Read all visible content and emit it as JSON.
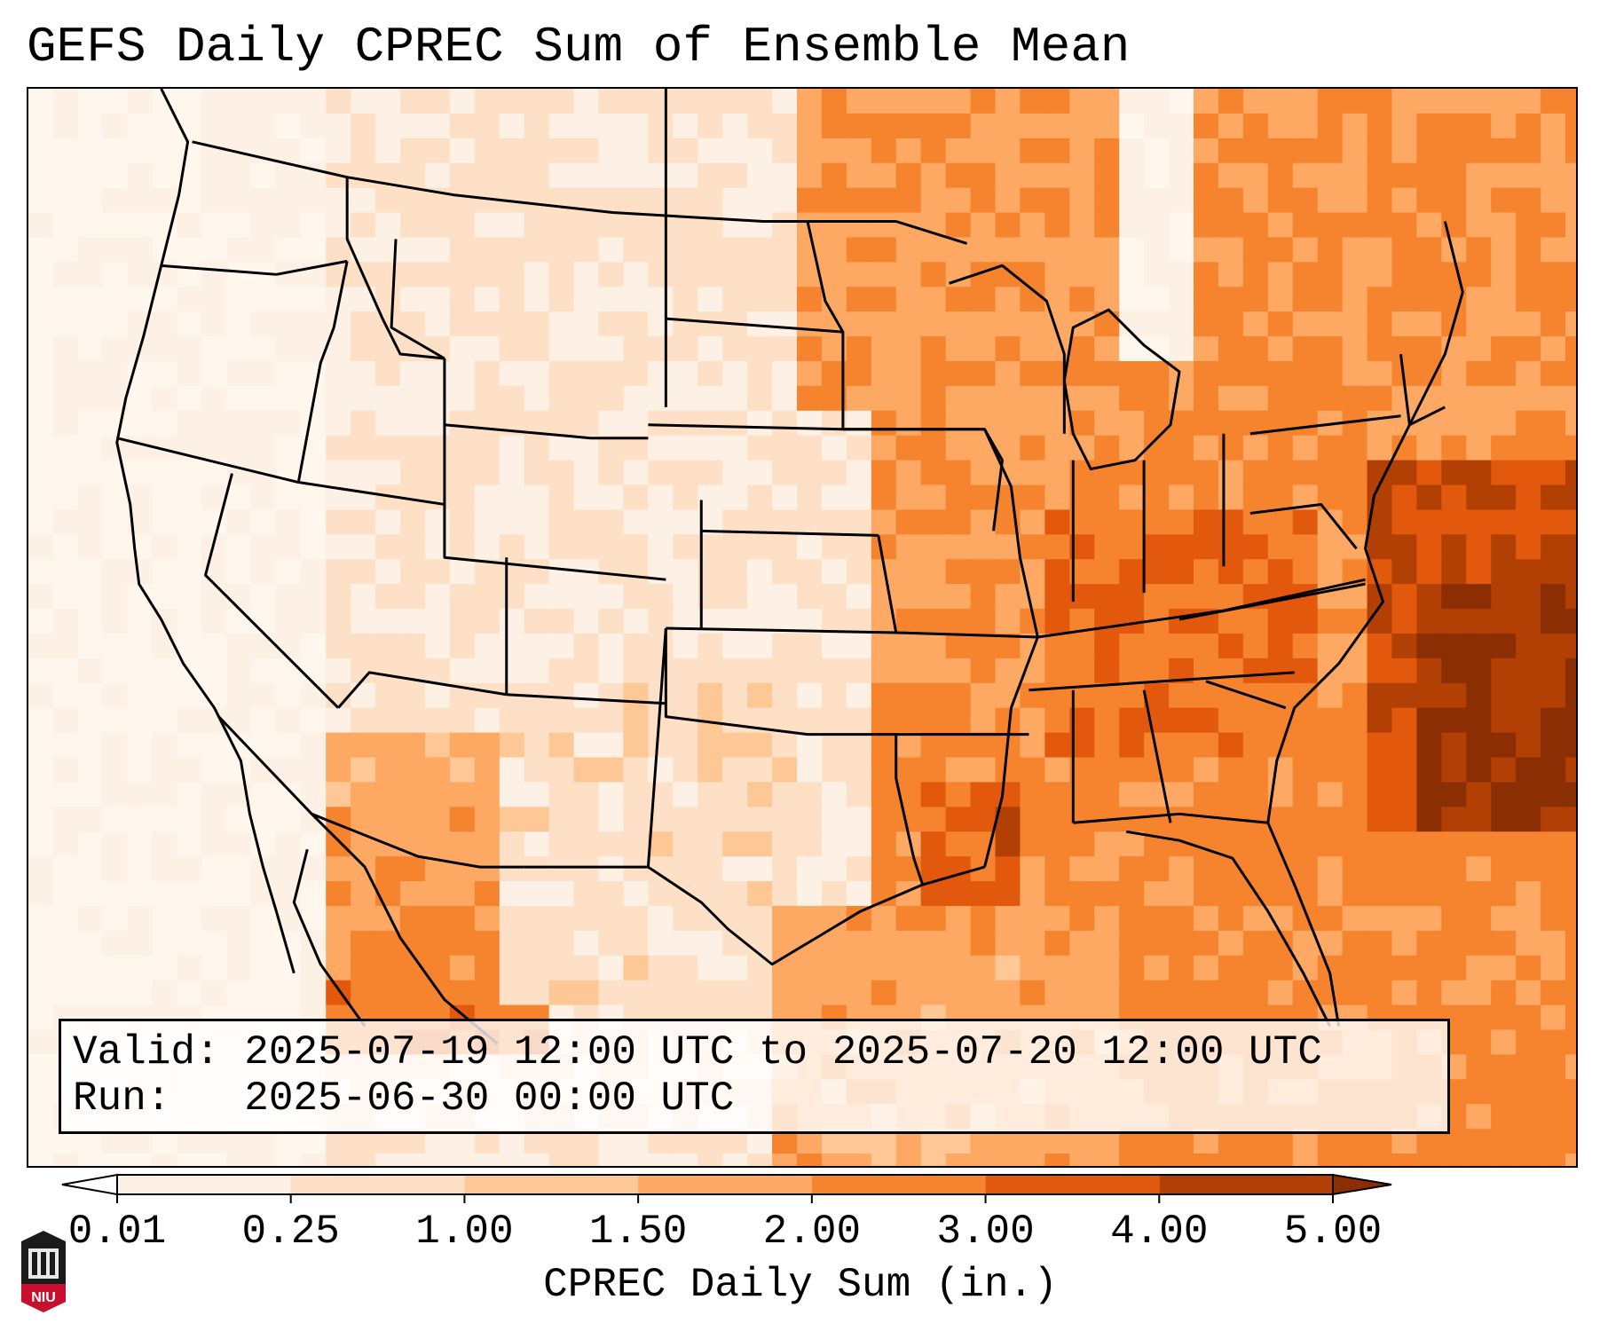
{
  "title": "GEFS Daily CPREC Sum of Ensemble Mean",
  "info": {
    "valid_label": "Valid:",
    "valid_value": "2025-07-19 12:00 UTC to 2025-07-20 12:00 UTC",
    "run_label": "Run:",
    "run_value": "2025-06-30 00:00 UTC"
  },
  "colorbar": {
    "label": "CPREC Daily Sum (in.)",
    "ticks": [
      "0.01",
      "0.25",
      "1.00",
      "1.50",
      "2.00",
      "3.00",
      "4.00",
      "5.00"
    ],
    "colors": [
      "#fdf0e4",
      "#fde0c5",
      "#fdc895",
      "#fda863",
      "#f6832d",
      "#e2580d",
      "#b23f04"
    ],
    "under_color": "#ffffff",
    "over_color": "#8b2e03"
  },
  "logo": {
    "text": "NIU",
    "icon": "niu-logo-icon"
  },
  "map": {
    "field_legend_colors": {
      "0": "#fff6ee",
      "1": "#fdf0e4",
      "2": "#fde0c5",
      "3": "#fdc895",
      "4": "#fda863",
      "5": "#f6832d",
      "6": "#e2580d",
      "7": "#b23f04",
      "8": "#8b2e03"
    }
  }
}
